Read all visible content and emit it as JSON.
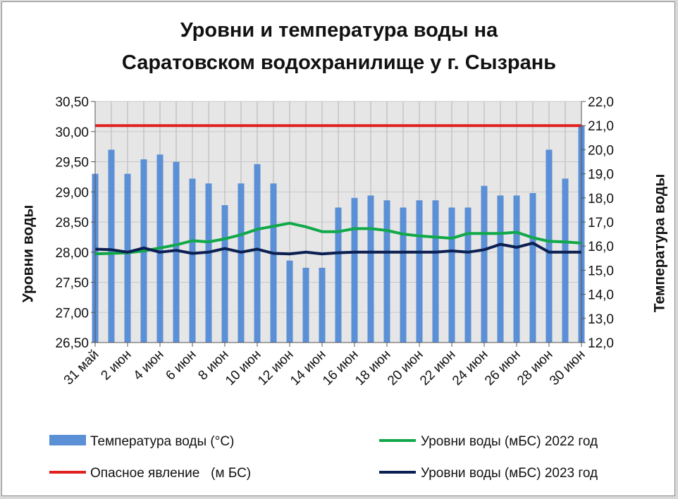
{
  "chart_data": {
    "type": "bar",
    "title_lines": [
      "Уровни и температура  воды на",
      "Саратовском водохранилище у  г. Сызрань"
    ],
    "y_left_label": "Уровни воды",
    "y_right_label": "Температура воды",
    "y_left_lim": [
      26.5,
      30.5
    ],
    "y_right_lim": [
      12.0,
      22.0
    ],
    "y_left_ticks": [
      "30,50",
      "30,00",
      "29,50",
      "29,00",
      "28,50",
      "28,00",
      "27,50",
      "27,00",
      "26,50"
    ],
    "y_right_ticks": [
      "22,0",
      "21,0",
      "20,0",
      "19,0",
      "18,0",
      "17,0",
      "16,0",
      "15,0",
      "14,0",
      "13,0",
      "12,0"
    ],
    "x_tick_labels": [
      "31 май",
      "2 июн",
      "4 июн",
      "6 июн",
      "8 июн",
      "10 июн",
      "12 июн",
      "14 июн",
      "16 июн",
      "18 июн",
      "20 июн",
      "22 июн",
      "24 июн",
      "26 июн",
      "28 июн",
      "30 июн"
    ],
    "grid": true,
    "legend_position": "bottom",
    "series": [
      {
        "name": "Температура воды (°С)",
        "type": "bar",
        "axis": "right",
        "color": "#5b8fd6",
        "values": [
          19.0,
          20.0,
          19.0,
          19.6,
          19.8,
          19.5,
          18.8,
          18.6,
          17.7,
          18.6,
          19.4,
          18.6,
          15.4,
          15.1,
          15.1,
          17.6,
          18.0,
          18.1,
          17.9,
          17.6,
          17.9,
          17.9,
          17.6,
          17.6,
          18.5,
          18.1,
          18.1,
          18.2,
          20.0,
          18.8,
          21.0
        ]
      },
      {
        "name": "Опасное явление   (м БС)",
        "type": "line",
        "axis": "left",
        "color": "#e02020",
        "values": [
          30.1,
          30.1,
          30.1,
          30.1,
          30.1,
          30.1,
          30.1,
          30.1,
          30.1,
          30.1,
          30.1,
          30.1,
          30.1,
          30.1,
          30.1,
          30.1,
          30.1,
          30.1,
          30.1,
          30.1,
          30.1,
          30.1,
          30.1,
          30.1,
          30.1,
          30.1,
          30.1,
          30.1,
          30.1,
          30.1,
          30.1
        ]
      },
      {
        "name": "Уровни воды (мБС)  2022 год",
        "type": "line",
        "axis": "left",
        "color": "#11a84a",
        "values": [
          27.97,
          27.98,
          27.99,
          28.02,
          28.07,
          28.12,
          28.19,
          28.17,
          28.22,
          28.29,
          28.38,
          28.43,
          28.48,
          28.42,
          28.34,
          28.34,
          28.39,
          28.39,
          28.36,
          28.3,
          28.27,
          28.25,
          28.23,
          28.31,
          28.31,
          28.31,
          28.33,
          28.24,
          28.18,
          28.17,
          28.15
        ]
      },
      {
        "name": "Уровни воды (мБС)  2023 год",
        "type": "line",
        "axis": "left",
        "color": "#0c1f52",
        "values": [
          28.05,
          28.04,
          28.0,
          28.07,
          28.0,
          28.03,
          27.98,
          28.0,
          28.06,
          28.0,
          28.05,
          27.98,
          27.97,
          28.0,
          27.97,
          27.99,
          28.0,
          28.0,
          28.0,
          28.0,
          28.0,
          28.0,
          28.02,
          28.0,
          28.04,
          28.13,
          28.08,
          28.15,
          28.0,
          28.0,
          28.0
        ]
      }
    ]
  }
}
